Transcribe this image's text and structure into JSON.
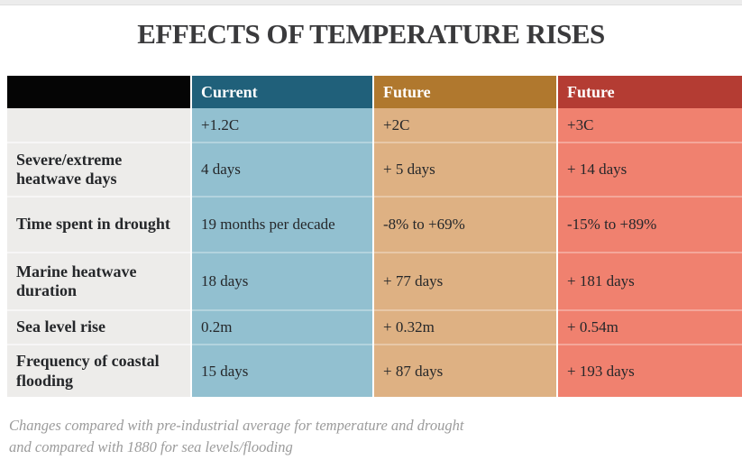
{
  "chart_data": {
    "type": "table",
    "title": "EFFECTS OF TEMPERATURE RISES",
    "columns": [
      {
        "header": "Current",
        "scenario": "+1.2C",
        "header_color": "#20607a",
        "body_color": "#92c0d0"
      },
      {
        "header": "Future",
        "scenario": "+2C",
        "header_color": "#b0782e",
        "body_color": "#deb183"
      },
      {
        "header": "Future",
        "scenario": "+3C",
        "header_color": "#b43c33",
        "body_color": "#f0816f"
      }
    ],
    "rows": [
      {
        "label": "Severe/extreme heatwave days",
        "values": [
          "4 days",
          "+ 5 days",
          "+ 14 days"
        ]
      },
      {
        "label": "Time spent in drought",
        "values": [
          "19 months per decade",
          "-8% to +69%",
          "-15% to +89%"
        ]
      },
      {
        "label": "Marine heatwave duration",
        "values": [
          "18 days",
          "+ 77 days",
          "+ 181 days"
        ]
      },
      {
        "label": "Sea level rise",
        "values": [
          "0.2m",
          "+ 0.32m",
          "+ 0.54m"
        ]
      },
      {
        "label": "Frequency of coastal flooding",
        "values": [
          "15 days",
          "+ 87 days",
          "+ 193 days"
        ]
      }
    ],
    "row_label_column_color": "#edecea",
    "blank_header_color": "#050505",
    "footnote": [
      "Changes compared with pre-industrial average for temperature and drought",
      "and compared with 1880 for sea levels/flooding"
    ]
  }
}
